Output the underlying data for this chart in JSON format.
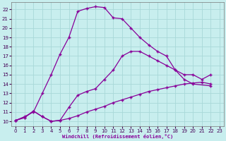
{
  "xlabel": "Windchill (Refroidissement éolien,°C)",
  "bg_color": "#c8eeee",
  "grid_color": "#a8d8d8",
  "line_color": "#880099",
  "xlim": [
    -0.5,
    23.5
  ],
  "ylim": [
    9.5,
    22.8
  ],
  "xticks": [
    0,
    1,
    2,
    3,
    4,
    5,
    6,
    7,
    8,
    9,
    10,
    11,
    12,
    13,
    14,
    15,
    16,
    17,
    18,
    19,
    20,
    21,
    22,
    23
  ],
  "yticks": [
    10,
    11,
    12,
    13,
    14,
    15,
    16,
    17,
    18,
    19,
    20,
    21,
    22
  ],
  "line1_x": [
    0,
    1,
    2,
    3,
    4,
    5,
    6,
    7,
    8,
    9,
    10,
    11,
    12,
    13,
    14,
    15,
    16,
    17,
    18,
    19,
    20,
    22
  ],
  "line1_y": [
    10.1,
    10.5,
    11.0,
    13.0,
    15.0,
    17.2,
    19.0,
    21.8,
    22.1,
    22.3,
    22.2,
    21.1,
    21.0,
    20.0,
    19.0,
    18.2,
    17.5,
    17.0,
    15.5,
    14.5,
    14.0,
    13.8
  ],
  "line2_x": [
    0,
    1,
    2,
    3,
    4,
    5,
    6,
    7,
    8,
    9,
    10,
    11,
    12,
    13,
    14,
    15,
    16,
    17,
    18,
    19,
    20,
    21,
    22
  ],
  "line2_y": [
    10.1,
    10.4,
    11.1,
    10.5,
    10.0,
    10.1,
    11.5,
    12.8,
    13.2,
    13.5,
    14.5,
    15.5,
    17.0,
    17.5,
    17.5,
    17.0,
    16.5,
    16.0,
    15.5,
    15.0,
    15.0,
    14.5,
    15.0
  ],
  "line3_x": [
    0,
    1,
    2,
    3,
    4,
    5,
    6,
    7,
    8,
    9,
    10,
    11,
    12,
    13,
    14,
    15,
    16,
    17,
    18,
    19,
    20,
    21,
    22
  ],
  "line3_y": [
    10.1,
    10.4,
    11.1,
    10.5,
    10.0,
    10.1,
    10.3,
    10.6,
    11.0,
    11.3,
    11.6,
    12.0,
    12.3,
    12.6,
    12.9,
    13.2,
    13.4,
    13.6,
    13.8,
    14.0,
    14.1,
    14.2,
    14.0
  ]
}
